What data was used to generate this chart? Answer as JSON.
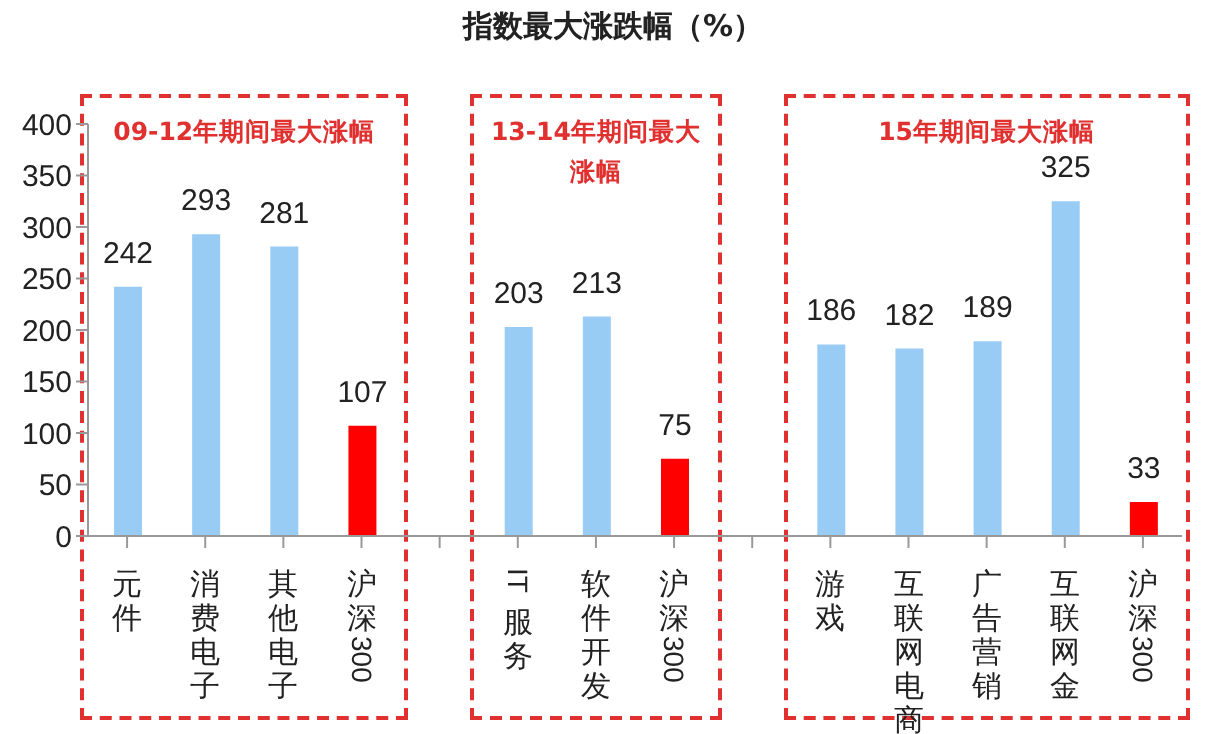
{
  "chart_data": {
    "type": "bar",
    "title": "指数最大涨跌幅（%）",
    "categories": [
      "元件",
      "消费电子",
      "其他电子",
      "沪深300",
      null,
      "IT服务",
      "软件开发",
      "沪深300",
      null,
      "游戏",
      "互联网电商",
      "广告营销",
      "互联网金",
      "沪深300"
    ],
    "values": [
      242,
      293,
      281,
      107,
      null,
      203,
      213,
      75,
      null,
      186,
      182,
      189,
      325,
      33
    ],
    "colors": [
      "#99ccf5",
      "#99ccf5",
      "#99ccf5",
      "#ff0000",
      null,
      "#99ccf5",
      "#99ccf5",
      "#ff0000",
      null,
      "#99ccf5",
      "#99ccf5",
      "#99ccf5",
      "#99ccf5",
      "#ff0000"
    ],
    "ylim": [
      0,
      400
    ],
    "yticks": [
      0,
      50,
      100,
      150,
      200,
      250,
      300,
      350,
      400
    ],
    "data_labels": true,
    "grid": false,
    "legend": false,
    "annotations": [
      "09-12年期间最大涨幅",
      "13-14年期间最大涨幅",
      "15年期间最大涨幅"
    ]
  }
}
